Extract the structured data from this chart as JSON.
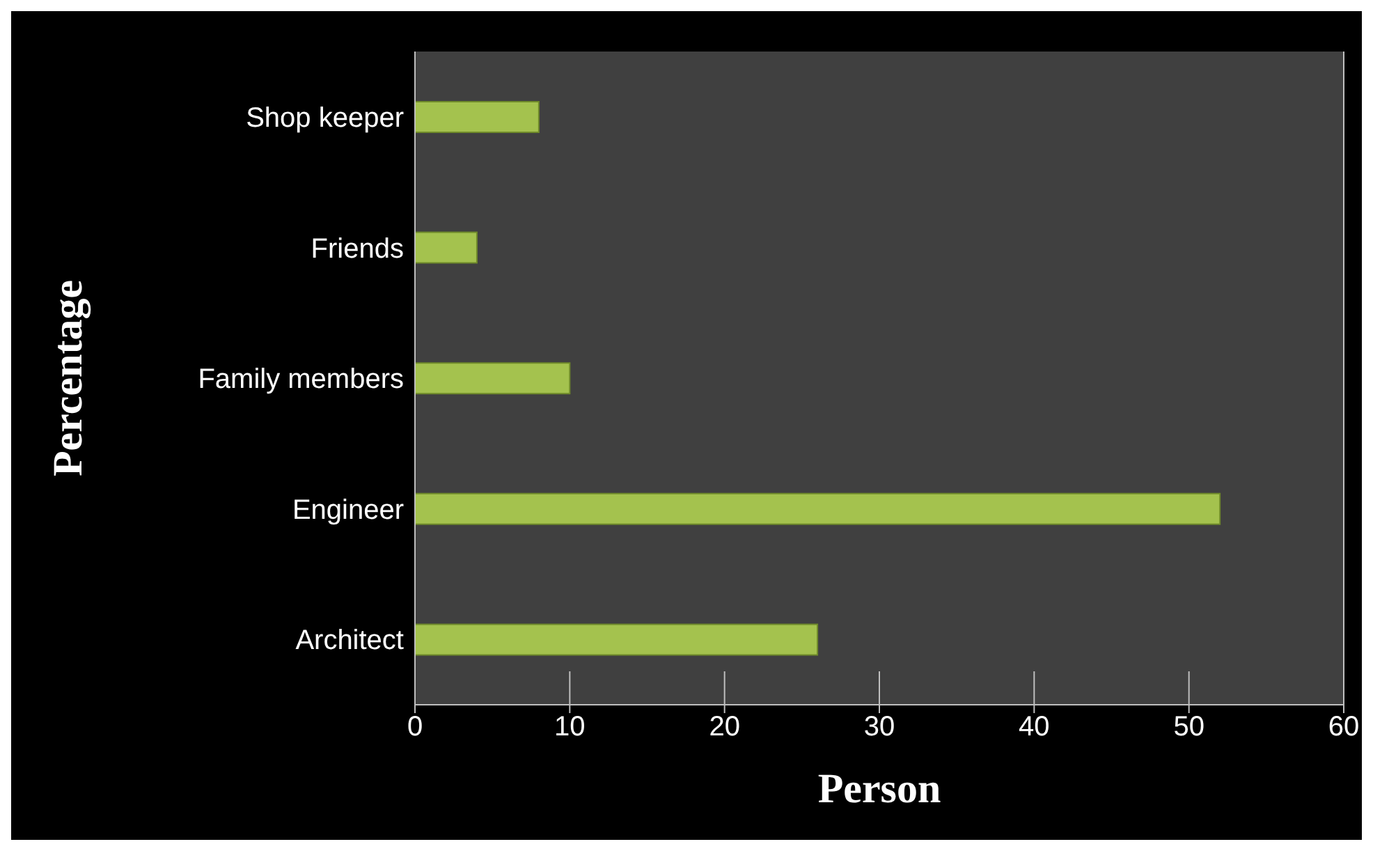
{
  "chart_data": {
    "type": "bar",
    "orientation": "horizontal",
    "categories": [
      "Shop keeper",
      "Friends",
      "Family members",
      "Engineer",
      "Architect"
    ],
    "values": [
      8,
      4,
      10,
      52,
      26
    ],
    "color": "#a4c24e",
    "xlim": [
      0,
      60
    ],
    "xticks": [
      0,
      10,
      20,
      30,
      40,
      50,
      60
    ],
    "grid": "x",
    "xlabel": "Person",
    "ylabel": "Percentage"
  }
}
